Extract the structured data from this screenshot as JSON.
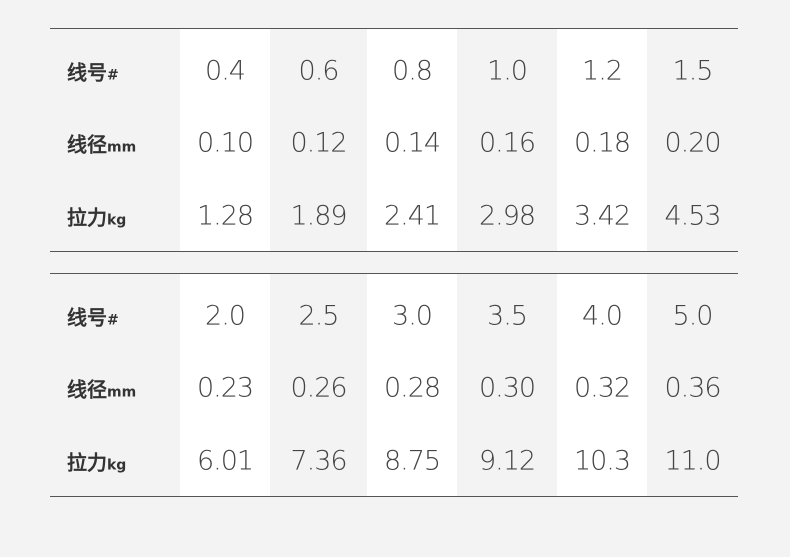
{
  "tables": [
    {
      "rows": [
        {
          "label": "线号",
          "unit": "#",
          "values": [
            "0.4",
            "0.6",
            "0.8",
            "1.0",
            "1.2",
            "1.5"
          ]
        },
        {
          "label": "线径",
          "unit": "mm",
          "values": [
            "0.10",
            "0.12",
            "0.14",
            "0.16",
            "0.18",
            "0.20"
          ]
        },
        {
          "label": "拉力",
          "unit": "kg",
          "values": [
            "1.28",
            "1.89",
            "2.41",
            "2.98",
            "3.42",
            "4.53"
          ]
        }
      ]
    },
    {
      "rows": [
        {
          "label": "线号",
          "unit": "#",
          "values": [
            "2.0",
            "2.5",
            "3.0",
            "3.5",
            "4.0",
            "5.0"
          ]
        },
        {
          "label": "线径",
          "unit": "mm",
          "values": [
            "0.23",
            "0.26",
            "0.28",
            "0.30",
            "0.32",
            "0.36"
          ]
        },
        {
          "label": "拉力",
          "unit": "kg",
          "values": [
            "6.01",
            "7.36",
            "8.75",
            "9.12",
            "10.3",
            "11.0"
          ]
        }
      ]
    }
  ]
}
